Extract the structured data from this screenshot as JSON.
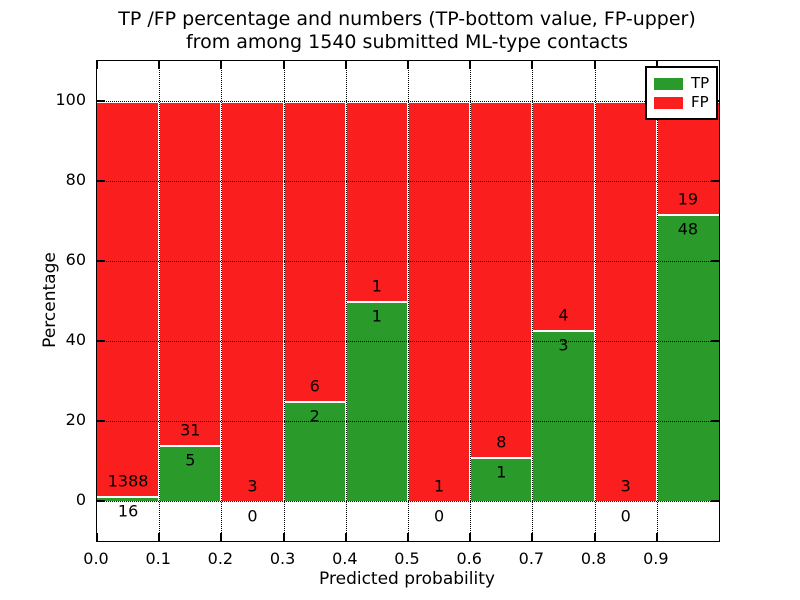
{
  "title": {
    "line1": "TP /FP percentage and numbers (TP-bottom value, FP-upper)",
    "line2": "from among 1540 submitted ML-type contacts"
  },
  "colors": {
    "tp": "#2a9b2a",
    "fp": "#fb1e1e",
    "grid": "#000000",
    "bar_edge": "#ffffff",
    "background": "#ffffff"
  },
  "legend": {
    "items": [
      {
        "label": "TP",
        "color_key": "tp"
      },
      {
        "label": "FP",
        "color_key": "fp"
      }
    ]
  },
  "chart_data": {
    "type": "bar",
    "stacked": true,
    "normalized_to_percent": true,
    "title": "TP /FP percentage and numbers (TP-bottom value, FP-upper)\nfrom among 1540 submitted ML-type contacts",
    "xlabel": "Predicted probability",
    "ylabel": "Percentage",
    "xlim": [
      0.0,
      1.0
    ],
    "ylim": [
      -10,
      110
    ],
    "bin_width": 0.1,
    "x_tick_labels": [
      "0.0",
      "0.1",
      "0.2",
      "0.3",
      "0.4",
      "0.5",
      "0.6",
      "0.7",
      "0.8",
      "0.9"
    ],
    "y_tick_values": [
      0,
      20,
      40,
      60,
      80,
      100
    ],
    "grid": true,
    "legend_position": "upper right",
    "total_contacts": 1540,
    "series": [
      {
        "name": "TP",
        "values_pct": [
          1.14,
          13.89,
          0.0,
          25.0,
          50.0,
          0.0,
          11.11,
          42.86,
          0.0,
          71.64
        ]
      },
      {
        "name": "FP",
        "values_pct": [
          98.86,
          86.11,
          100.0,
          75.0,
          50.0,
          100.0,
          88.89,
          57.14,
          100.0,
          28.36
        ]
      }
    ],
    "bins": [
      {
        "x_start": 0.0,
        "tp": 16,
        "fp": 1388,
        "tp_pct": 1.14
      },
      {
        "x_start": 0.1,
        "tp": 5,
        "fp": 31,
        "tp_pct": 13.89
      },
      {
        "x_start": 0.2,
        "tp": 0,
        "fp": 3,
        "tp_pct": 0.0
      },
      {
        "x_start": 0.3,
        "tp": 2,
        "fp": 6,
        "tp_pct": 25.0
      },
      {
        "x_start": 0.4,
        "tp": 1,
        "fp": 1,
        "tp_pct": 50.0
      },
      {
        "x_start": 0.5,
        "tp": 0,
        "fp": 1,
        "tp_pct": 0.0
      },
      {
        "x_start": 0.6,
        "tp": 1,
        "fp": 8,
        "tp_pct": 11.11
      },
      {
        "x_start": 0.7,
        "tp": 3,
        "fp": 4,
        "tp_pct": 42.86
      },
      {
        "x_start": 0.8,
        "tp": 0,
        "fp": 3,
        "tp_pct": 0.0
      },
      {
        "x_start": 0.9,
        "tp": 48,
        "fp": 19,
        "tp_pct": 71.64
      }
    ]
  }
}
